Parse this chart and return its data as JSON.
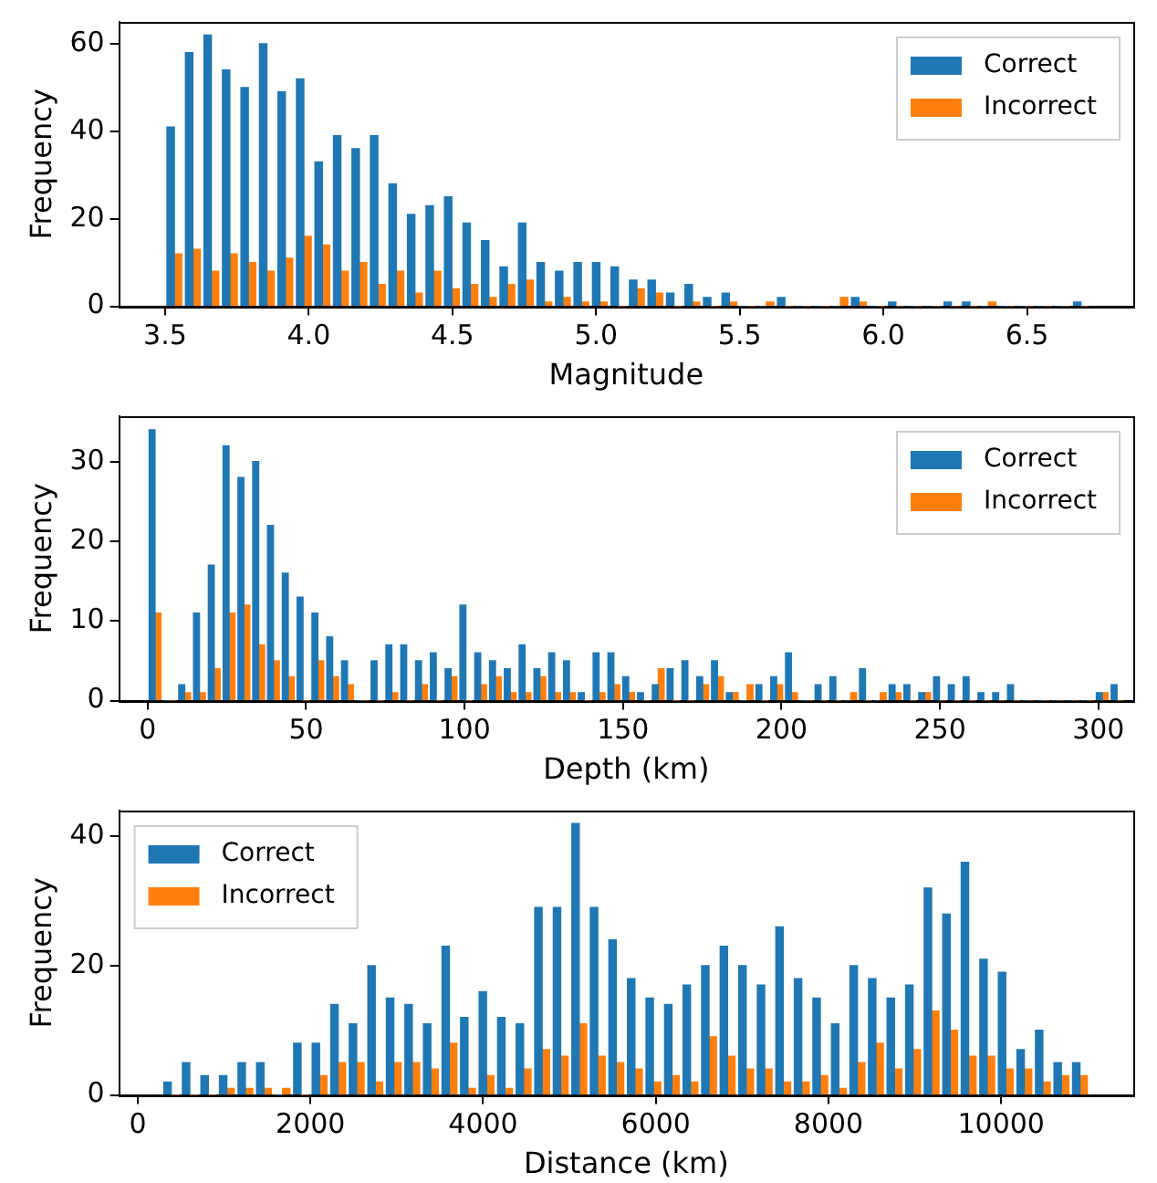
{
  "chart_data": [
    {
      "type": "histogram",
      "xlabel": "Magnitude",
      "ylabel": "Frequency",
      "legend": "top right",
      "bins": [
        3.5,
        3.5644,
        3.6288,
        3.6932,
        3.7576,
        3.822,
        3.8864,
        3.9508,
        4.0152,
        4.0796,
        4.144,
        4.2084,
        4.2728,
        4.3372,
        4.4016,
        4.466,
        4.5304,
        4.5948,
        4.6592,
        4.7236,
        4.788,
        4.8524,
        4.9168,
        4.9812,
        5.0456,
        5.11,
        5.1744,
        5.2388,
        5.3032,
        5.3676,
        5.432,
        5.4964,
        5.5608,
        5.6252,
        5.6896,
        5.754,
        5.8184,
        5.8828,
        5.9472,
        6.0116,
        6.076,
        6.1404,
        6.2048,
        6.2692,
        6.3336,
        6.398,
        6.4624,
        6.5268,
        6.5912,
        6.6556,
        6.72
      ],
      "series": [
        {
          "name": "Correct",
          "color": "#1f77b4",
          "values": [
            41,
            58,
            62,
            54,
            50,
            60,
            49,
            52,
            33,
            39,
            36,
            39,
            28,
            21,
            23,
            25,
            19,
            15,
            9,
            19,
            10,
            8,
            10,
            10,
            9,
            6,
            6,
            3,
            5,
            2,
            3,
            0,
            0,
            2,
            0,
            0,
            0,
            2,
            0,
            1,
            0,
            0,
            1,
            1,
            0,
            0,
            0,
            0,
            0,
            1
          ]
        },
        {
          "name": "Incorrect",
          "color": "#ff7f0e",
          "values": [
            12,
            13,
            8,
            12,
            10,
            8,
            11,
            16,
            14,
            8,
            10,
            5,
            8,
            3,
            8,
            4,
            5,
            2,
            5,
            6,
            1,
            2,
            1,
            1,
            0,
            4,
            3,
            0,
            1,
            0,
            1,
            0,
            1,
            0,
            0,
            0,
            2,
            1,
            0,
            0,
            0,
            0,
            0,
            0,
            1,
            0,
            0,
            0,
            0,
            0
          ]
        }
      ],
      "xlim": [
        3.34,
        6.87
      ],
      "xticks": [
        3.5,
        {
          "value": 4,
          "label": "4.0"
        },
        4.5,
        {
          "value": 5,
          "label": "5.0"
        },
        5.5,
        {
          "value": 6,
          "label": "6.0"
        },
        6.5
      ],
      "ylim": [
        0,
        65
      ],
      "yticks": [
        0,
        20,
        40,
        60
      ]
    },
    {
      "type": "histogram",
      "xlabel": "Depth (km)",
      "ylabel": "Frequency",
      "legend": "top right",
      "bins": [
        0,
        4.67,
        9.34,
        14.01,
        18.68,
        23.35,
        28.02,
        32.69,
        37.36,
        42.03,
        46.7,
        51.37,
        56.04,
        60.71,
        65.38,
        70.05,
        74.72,
        79.39,
        84.06,
        88.73,
        93.4,
        98.07,
        102.74,
        107.41,
        112.08,
        116.75,
        121.42,
        126.09,
        130.76,
        135.43,
        140.1,
        144.77,
        149.44,
        154.11,
        158.78,
        163.45,
        168.12,
        172.79,
        177.46,
        182.13,
        186.8,
        191.47,
        196.14,
        200.81,
        205.48,
        210.15,
        214.82,
        219.49,
        224.16,
        228.83,
        233.5,
        238.17,
        242.84,
        247.51,
        252.18,
        256.85,
        261.52,
        266.19,
        270.86,
        275.53,
        280.2,
        284.87,
        289.54,
        294.21,
        298.88,
        303.55,
        308.22
      ],
      "series": [
        {
          "name": "Correct",
          "color": "#1f77b4",
          "values": [
            34,
            0,
            2,
            11,
            17,
            32,
            28,
            30,
            22,
            16,
            13,
            11,
            8,
            5,
            0,
            5,
            7,
            7,
            5,
            6,
            4,
            12,
            6,
            5,
            4,
            7,
            4,
            6,
            5,
            1,
            6,
            6,
            3,
            1,
            2,
            4,
            5,
            3,
            5,
            1,
            0,
            2,
            3,
            6,
            0,
            2,
            3,
            0,
            4,
            0,
            2,
            2,
            1,
            3,
            2,
            3,
            1,
            1,
            2,
            0,
            0,
            0,
            0,
            0,
            1,
            2
          ]
        },
        {
          "name": "Incorrect",
          "color": "#ff7f0e",
          "values": [
            11,
            0,
            1,
            1,
            4,
            11,
            12,
            7,
            5,
            3,
            0,
            5,
            3,
            2,
            0,
            0,
            1,
            0,
            2,
            0,
            3,
            0,
            2,
            3,
            1,
            1,
            3,
            1,
            1,
            0,
            1,
            2,
            1,
            0,
            4,
            0,
            0,
            2,
            3,
            1,
            2,
            0,
            2,
            1,
            0,
            0,
            0,
            1,
            0,
            1,
            1,
            0,
            1,
            0,
            0,
            0,
            0,
            0,
            0,
            0,
            0,
            0,
            0,
            0,
            1,
            0
          ]
        }
      ],
      "xlim": [
        -9,
        311
      ],
      "xticks": [
        0,
        50,
        100,
        150,
        200,
        250,
        300
      ],
      "ylim": [
        0,
        35.7
      ],
      "yticks": [
        0,
        10,
        20,
        30
      ]
    },
    {
      "type": "histogram",
      "xlabel": "Distance (km)",
      "ylabel": "Frequency",
      "legend": "top left",
      "bins": [
        280,
        495,
        710,
        924,
        1139,
        1354,
        1569,
        1784,
        1998,
        2213,
        2428,
        2643,
        2858,
        3072,
        3287,
        3502,
        3717,
        3932,
        4146,
        4361,
        4576,
        4791,
        5006,
        5220,
        5435,
        5650,
        5865,
        6080,
        6294,
        6509,
        6724,
        6939,
        7154,
        7368,
        7583,
        7798,
        8013,
        8228,
        8442,
        8657,
        8872,
        9087,
        9302,
        9516,
        9731,
        9946,
        10161,
        10376,
        10590,
        10805,
        11020
      ],
      "series": [
        {
          "name": "Correct",
          "color": "#1f77b4",
          "values": [
            2,
            5,
            3,
            3,
            5,
            5,
            0,
            8,
            8,
            14,
            11,
            20,
            15,
            14,
            11,
            23,
            12,
            16,
            12,
            11,
            29,
            29,
            42,
            29,
            24,
            18,
            15,
            14,
            17,
            20,
            23,
            20,
            17,
            26,
            18,
            15,
            11,
            20,
            18,
            15,
            17,
            32,
            28,
            36,
            21,
            19,
            7,
            10,
            5,
            5
          ]
        },
        {
          "name": "Incorrect",
          "color": "#ff7f0e",
          "values": [
            0,
            0,
            0,
            1,
            1,
            1,
            1,
            0,
            3,
            5,
            5,
            2,
            5,
            5,
            4,
            8,
            1,
            3,
            1,
            4,
            7,
            6,
            11,
            6,
            5,
            4,
            2,
            3,
            2,
            9,
            6,
            4,
            4,
            2,
            2,
            3,
            1,
            5,
            8,
            4,
            7,
            13,
            10,
            6,
            6,
            4,
            4,
            2,
            3,
            3
          ]
        }
      ],
      "xlim": [
        -216,
        11530
      ],
      "xticks": [
        0,
        2000,
        4000,
        6000,
        8000,
        10000
      ],
      "ylim": [
        0,
        44
      ],
      "yticks": [
        0,
        20,
        40
      ]
    }
  ]
}
